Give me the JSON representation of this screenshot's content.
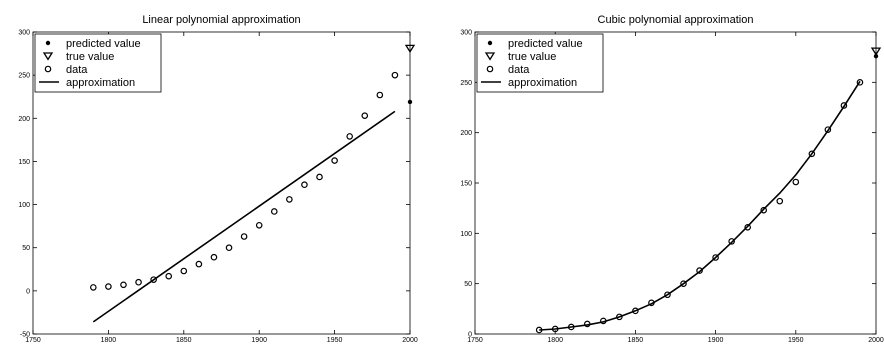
{
  "chart_data": [
    {
      "type": "scatter",
      "title": "Linear polynomial approximation",
      "xlabel": "",
      "ylabel": "",
      "xlim": [
        1750,
        2000
      ],
      "ylim": [
        -50,
        300
      ],
      "xticks": [
        1750,
        1800,
        1850,
        1900,
        1950,
        2000
      ],
      "yticks": [
        -50,
        0,
        50,
        100,
        150,
        200,
        250,
        300
      ],
      "legend_position": "top-left",
      "grid": false,
      "series": [
        {
          "name": "predicted value",
          "marker": "dot",
          "x": [
            2000
          ],
          "y": [
            219
          ]
        },
        {
          "name": "true value",
          "marker": "triangle-down",
          "x": [
            2000
          ],
          "y": [
            281
          ]
        },
        {
          "name": "data",
          "marker": "circle",
          "x": [
            1790,
            1800,
            1810,
            1820,
            1830,
            1840,
            1850,
            1860,
            1870,
            1880,
            1890,
            1900,
            1910,
            1920,
            1930,
            1940,
            1950,
            1960,
            1970,
            1980,
            1990
          ],
          "y": [
            4,
            5,
            7,
            10,
            13,
            17,
            23,
            31,
            39,
            50,
            63,
            76,
            92,
            106,
            123,
            132,
            151,
            179,
            203,
            227,
            250
          ]
        },
        {
          "name": "approximation",
          "marker": "line",
          "x": [
            1790,
            1990
          ],
          "y": [
            -36,
            208
          ]
        }
      ]
    },
    {
      "type": "scatter",
      "title": "Cubic polynomial approximation",
      "xlabel": "",
      "ylabel": "",
      "xlim": [
        1750,
        2000
      ],
      "ylim": [
        0,
        300
      ],
      "xticks": [
        1750,
        1800,
        1850,
        1900,
        1950,
        2000
      ],
      "yticks": [
        0,
        50,
        100,
        150,
        200,
        250,
        300
      ],
      "legend_position": "top-left",
      "grid": false,
      "series": [
        {
          "name": "predicted value",
          "marker": "dot",
          "x": [
            2000
          ],
          "y": [
            276
          ]
        },
        {
          "name": "true value",
          "marker": "triangle-down",
          "x": [
            2000
          ],
          "y": [
            281
          ]
        },
        {
          "name": "data",
          "marker": "circle",
          "x": [
            1790,
            1800,
            1810,
            1820,
            1830,
            1840,
            1850,
            1860,
            1870,
            1880,
            1890,
            1900,
            1910,
            1920,
            1930,
            1940,
            1950,
            1960,
            1970,
            1980,
            1990
          ],
          "y": [
            4,
            5,
            7,
            10,
            13,
            17,
            23,
            31,
            39,
            50,
            63,
            76,
            92,
            106,
            123,
            132,
            151,
            179,
            203,
            227,
            250
          ]
        },
        {
          "name": "approximation",
          "marker": "line",
          "x": [
            1790,
            1800,
            1810,
            1820,
            1830,
            1840,
            1850,
            1860,
            1870,
            1880,
            1890,
            1900,
            1910,
            1920,
            1930,
            1940,
            1950,
            1960,
            1970,
            1980,
            1990
          ],
          "y": [
            4,
            5,
            7,
            9,
            12,
            17,
            23,
            30,
            39,
            50,
            62,
            76,
            91,
            107,
            124,
            140,
            158,
            179,
            202,
            226,
            251
          ]
        }
      ]
    }
  ]
}
